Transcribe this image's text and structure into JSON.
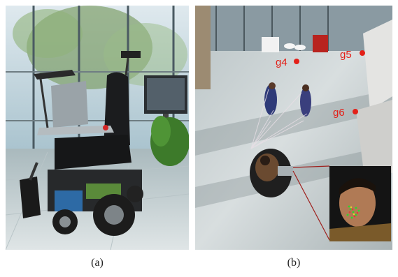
{
  "figure": {
    "panels": [
      {
        "id": "a",
        "caption": "(a)",
        "subject": "robotic wheelchair with mounted laptop and sensors in glass atrium"
      },
      {
        "id": "b",
        "caption": "(b)",
        "subject": "overhead view of wheelchair user and two standing people with goal markers"
      }
    ],
    "goal_markers": [
      "g4",
      "g5",
      "g6"
    ],
    "colors": {
      "goal_marker": "#e32018",
      "floor": "#c9cfd0",
      "glass": "#9fb7c2"
    }
  }
}
